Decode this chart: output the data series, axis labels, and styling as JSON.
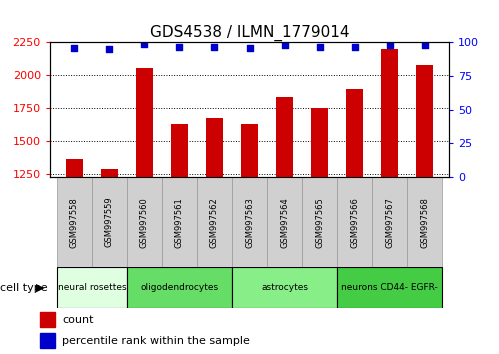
{
  "title": "GDS4538 / ILMN_1779014",
  "samples": [
    "GSM997558",
    "GSM997559",
    "GSM997560",
    "GSM997561",
    "GSM997562",
    "GSM997563",
    "GSM997564",
    "GSM997565",
    "GSM997566",
    "GSM997567",
    "GSM997568"
  ],
  "counts": [
    1370,
    1290,
    2060,
    1630,
    1680,
    1630,
    1840,
    1755,
    1900,
    2200,
    2080
  ],
  "percentile_ranks": [
    96,
    95,
    99,
    97,
    97,
    96,
    98,
    97,
    97,
    98,
    98
  ],
  "ylim_left": [
    1230,
    2250
  ],
  "ylim_right": [
    0,
    100
  ],
  "yticks_left": [
    1250,
    1500,
    1750,
    2000,
    2250
  ],
  "yticks_right": [
    0,
    25,
    50,
    75,
    100
  ],
  "cell_types": [
    {
      "label": "neural rosettes",
      "start": 0,
      "end": 2,
      "color": "#e0ffe0"
    },
    {
      "label": "oligodendrocytes",
      "start": 2,
      "end": 5,
      "color": "#66dd66"
    },
    {
      "label": "astrocytes",
      "start": 5,
      "end": 8,
      "color": "#88ee88"
    },
    {
      "label": "neurons CD44- EGFR-",
      "start": 8,
      "end": 11,
      "color": "#44cc44"
    }
  ],
  "bar_color": "#cc0000",
  "dot_color": "#0000cc",
  "cell_type_label": "cell type",
  "legend_count_label": "count",
  "legend_percentile_label": "percentile rank within the sample",
  "bar_width": 0.5,
  "baseline": 1230,
  "sample_box_color": "#d0d0d0",
  "sample_box_edge_color": "#999999"
}
